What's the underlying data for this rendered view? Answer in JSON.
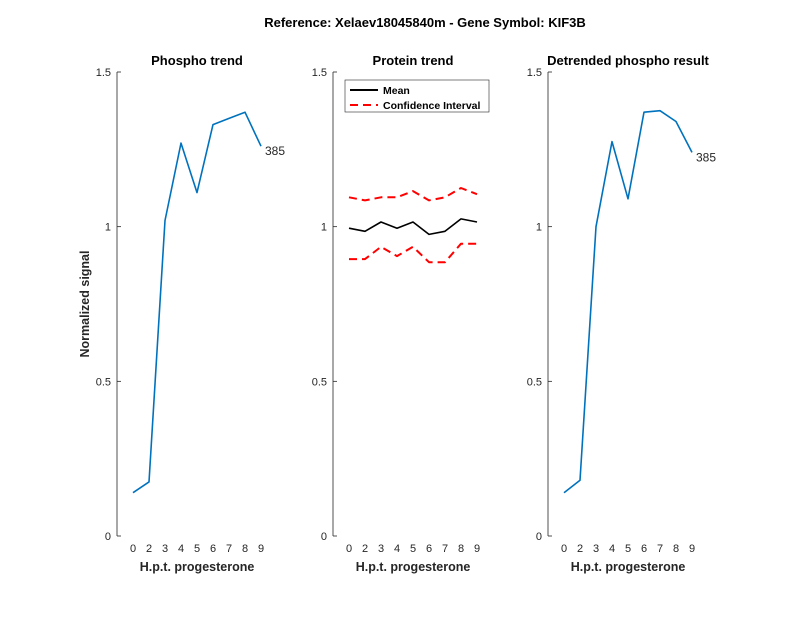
{
  "figure_title": "Reference:  Xelaev18045840m - Gene Symbol:  KIF3B",
  "chart_data": [
    {
      "type": "line",
      "title": "Phospho trend",
      "xlabel": "H.p.t. progesterone",
      "ylabel": "Normalized signal",
      "categories": [
        "0",
        "2",
        "3",
        "4",
        "5",
        "6",
        "7",
        "8",
        "9"
      ],
      "ylim": [
        0,
        1.5
      ],
      "yticks": [
        "0",
        "0.5",
        "1",
        "1.5"
      ],
      "grid": false,
      "series": [
        {
          "values": [
            0.14,
            0.175,
            1.02,
            1.27,
            1.11,
            1.33,
            1.35,
            1.37,
            1.26
          ],
          "color": "#0072BD",
          "style": "solid"
        }
      ],
      "annotation": "385"
    },
    {
      "type": "line",
      "title": "Protein trend",
      "xlabel": "H.p.t. progesterone",
      "ylabel": "",
      "categories": [
        "0",
        "2",
        "3",
        "4",
        "5",
        "6",
        "7",
        "8",
        "9"
      ],
      "ylim": [
        0,
        1.5
      ],
      "yticks": [
        "0",
        "0.5",
        "1",
        "1.5"
      ],
      "grid": false,
      "legend_placement": "top",
      "series": [
        {
          "name": "Mean",
          "values": [
            0.995,
            0.985,
            1.015,
            0.995,
            1.015,
            0.975,
            0.985,
            1.025,
            1.015
          ],
          "color": "#000000",
          "style": "solid"
        },
        {
          "name": "Confidence Interval",
          "values": [
            1.095,
            1.085,
            1.095,
            1.095,
            1.115,
            1.085,
            1.095,
            1.125,
            1.105
          ],
          "color": "#FF0000",
          "style": "dashed"
        },
        {
          "values": [
            0.895,
            0.895,
            0.935,
            0.905,
            0.935,
            0.885,
            0.885,
            0.945,
            0.945
          ],
          "color": "#FF0000",
          "style": "dashed"
        }
      ]
    },
    {
      "type": "line",
      "title": "Detrended phospho result",
      "xlabel": "H.p.t. progesterone",
      "ylabel": "",
      "categories": [
        "0",
        "2",
        "3",
        "4",
        "5",
        "6",
        "7",
        "8",
        "9"
      ],
      "ylim": [
        0,
        1.5
      ],
      "yticks": [
        "0",
        "0.5",
        "1",
        "1.5"
      ],
      "grid": false,
      "series": [
        {
          "values": [
            0.14,
            0.18,
            1.0,
            1.275,
            1.09,
            1.37,
            1.375,
            1.34,
            1.24
          ],
          "color": "#0072BD",
          "style": "solid"
        }
      ],
      "annotation": "385"
    }
  ]
}
